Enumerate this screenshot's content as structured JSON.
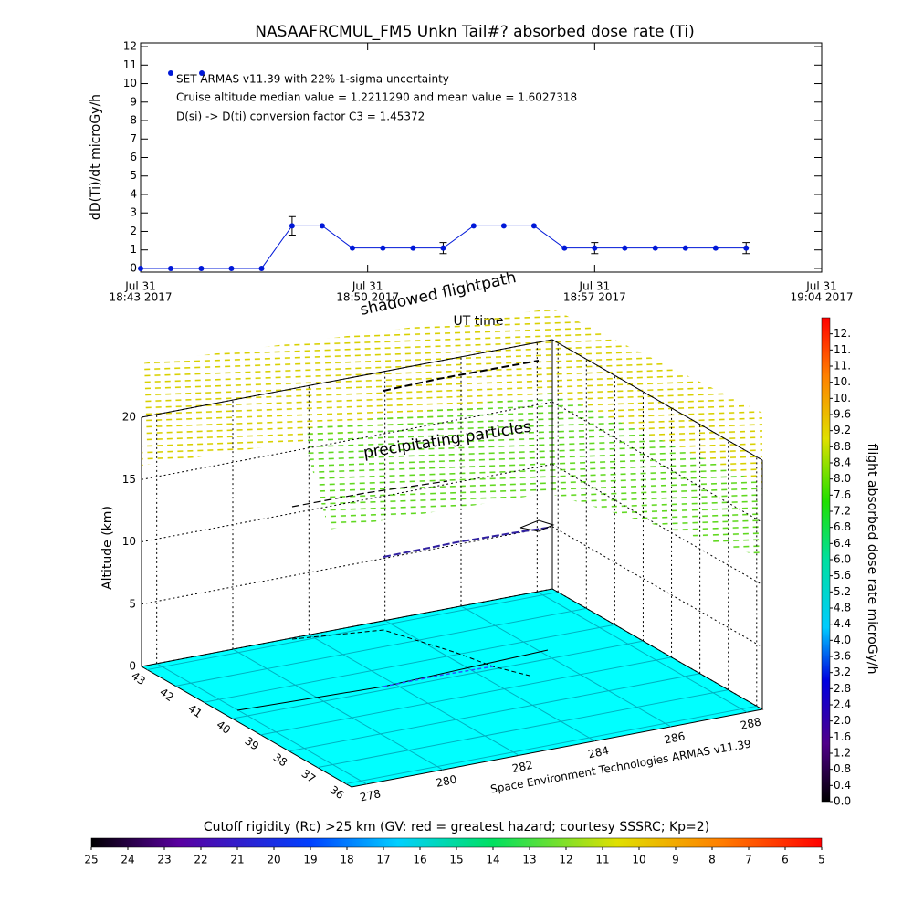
{
  "chart_data": [
    {
      "type": "line",
      "title": "NASAAFRCMUL_FM5 Unkn Tail#? absorbed dose rate (Ti)",
      "ylabel": "dD(Ti)/dt microGy/h",
      "xlabel": "UT time",
      "annotations": [
        "SET ARMAS v11.39 with 22% 1-sigma uncertainty",
        "Cruise altitude median value = 1.2211290 and mean value = 1.6027318",
        "D(si) -> D(ti) conversion factor C3 = 1.45372"
      ],
      "x": [
        0,
        0.93,
        1.87,
        2.8,
        3.73,
        4.67,
        5.6,
        6.53,
        7.47,
        8.4,
        9.33,
        10.27,
        11.2,
        12.13,
        13.07,
        14,
        14.93,
        15.87,
        16.8,
        17.73,
        18.67
      ],
      "values": [
        0,
        0,
        0,
        0,
        0,
        2.3,
        2.3,
        1.1,
        1.1,
        1.1,
        1.1,
        2.3,
        2.3,
        2.3,
        1.1,
        1.1,
        1.1,
        1.1,
        1.1,
        1.1,
        1.1
      ],
      "errors": [
        null,
        null,
        null,
        null,
        null,
        0.5,
        null,
        null,
        null,
        null,
        0.3,
        null,
        null,
        null,
        null,
        0.3,
        null,
        null,
        null,
        null,
        0.3
      ],
      "color": "#0018d8",
      "xlim": [
        0,
        21
      ],
      "xticks": [
        {
          "value": 0,
          "label": [
            "Jul 31",
            "18:43 2017"
          ]
        },
        {
          "value": 7,
          "label": [
            "Jul 31",
            "18:50 2017"
          ]
        },
        {
          "value": 14,
          "label": [
            "Jul 31",
            "18:57 2017"
          ]
        },
        {
          "value": 21,
          "label": [
            "Jul 31",
            "19:04 2017"
          ]
        }
      ],
      "ylim": [
        -0.2,
        12.2
      ],
      "yticks": [
        0,
        1,
        2,
        3,
        4,
        5,
        6,
        7,
        8,
        9,
        10,
        11,
        12
      ]
    },
    {
      "type": "surface3d",
      "zlabel": "Altitude (km)",
      "zlim": [
        0,
        20
      ],
      "zticks": [
        0,
        5,
        10,
        15,
        20
      ],
      "latlim": [
        35.8,
        43.2
      ],
      "latticks": [
        36,
        37,
        38,
        39,
        40,
        41,
        42,
        43
      ],
      "lonlim": [
        277.6,
        288.4
      ],
      "lonticks": [
        278,
        280,
        282,
        284,
        286,
        288
      ],
      "annotations": [
        "shadowed flightpath",
        "precipitating particles"
      ],
      "credit": "Space Environment Technologies ARMAS v11.39",
      "color": "#00ffff"
    },
    {
      "type": "colorbar",
      "label": "flight absorbed dose rate microGy/h",
      "lim": [
        0,
        12
      ],
      "ticks": [
        {
          "value": 0,
          "label": "0.0"
        },
        0.4,
        0.8,
        1.2,
        1.6,
        {
          "value": 2,
          "label": "2.0"
        },
        2.4,
        2.8,
        3.2,
        3.6,
        {
          "value": 4,
          "label": "4.0"
        },
        4.4,
        4.8,
        5.2,
        5.6,
        {
          "value": 6,
          "label": "6.0"
        },
        6.4,
        6.8,
        7.2,
        7.6,
        {
          "value": 8,
          "label": "8.0"
        },
        8.4,
        8.8,
        9.2,
        9.6,
        {
          "value": 10,
          "label": "10."
        },
        {
          "value": 10.4,
          "label": "10."
        },
        {
          "value": 10.8,
          "label": "11."
        },
        {
          "value": 11.2,
          "label": "11."
        },
        {
          "value": 11.6,
          "label": "12."
        }
      ]
    },
    {
      "type": "colorbar",
      "label": "Cutoff rigidity (Rc) >25 km (GV: red = greatest hazard; courtesy SSSRC; Kp=2)",
      "lim": [
        25,
        5
      ],
      "ticks": [
        25,
        24,
        23,
        22,
        21,
        20,
        19,
        18,
        17,
        16,
        15,
        14,
        13,
        12,
        11,
        10,
        9,
        8,
        7,
        6,
        5
      ]
    }
  ]
}
